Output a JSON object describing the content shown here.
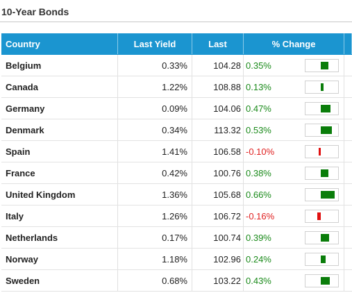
{
  "title": "10-Year Bonds",
  "columns": {
    "country": "Country",
    "last_yield": "Last Yield",
    "last": "Last",
    "change": "% Change"
  },
  "colors": {
    "header": "#1b95d0",
    "positive": "#1a8a1a",
    "negative": "#e02020",
    "bar_positive": "#0a7d0a",
    "bar_negative": "#e01010"
  },
  "rows": [
    {
      "country": "Belgium",
      "yield": "0.33%",
      "last": "104.28",
      "change": "0.35%",
      "change_value": 0.35
    },
    {
      "country": "Canada",
      "yield": "1.22%",
      "last": "108.88",
      "change": "0.13%",
      "change_value": 0.13
    },
    {
      "country": "Germany",
      "yield": "0.09%",
      "last": "104.06",
      "change": "0.47%",
      "change_value": 0.47
    },
    {
      "country": "Denmark",
      "yield": "0.34%",
      "last": "113.32",
      "change": "0.53%",
      "change_value": 0.53
    },
    {
      "country": "Spain",
      "yield": "1.41%",
      "last": "106.58",
      "change": "-0.10%",
      "change_value": -0.1
    },
    {
      "country": "France",
      "yield": "0.42%",
      "last": "100.76",
      "change": "0.38%",
      "change_value": 0.38
    },
    {
      "country": "United Kingdom",
      "yield": "1.36%",
      "last": "105.68",
      "change": "0.66%",
      "change_value": 0.66
    },
    {
      "country": "Italy",
      "yield": "1.26%",
      "last": "106.72",
      "change": "-0.16%",
      "change_value": -0.16
    },
    {
      "country": "Netherlands",
      "yield": "0.17%",
      "last": "100.74",
      "change": "0.39%",
      "change_value": 0.39
    },
    {
      "country": "Norway",
      "yield": "1.18%",
      "last": "102.96",
      "change": "0.24%",
      "change_value": 0.24
    },
    {
      "country": "Sweden",
      "yield": "0.68%",
      "last": "103.22",
      "change": "0.43%",
      "change_value": 0.43
    }
  ]
}
